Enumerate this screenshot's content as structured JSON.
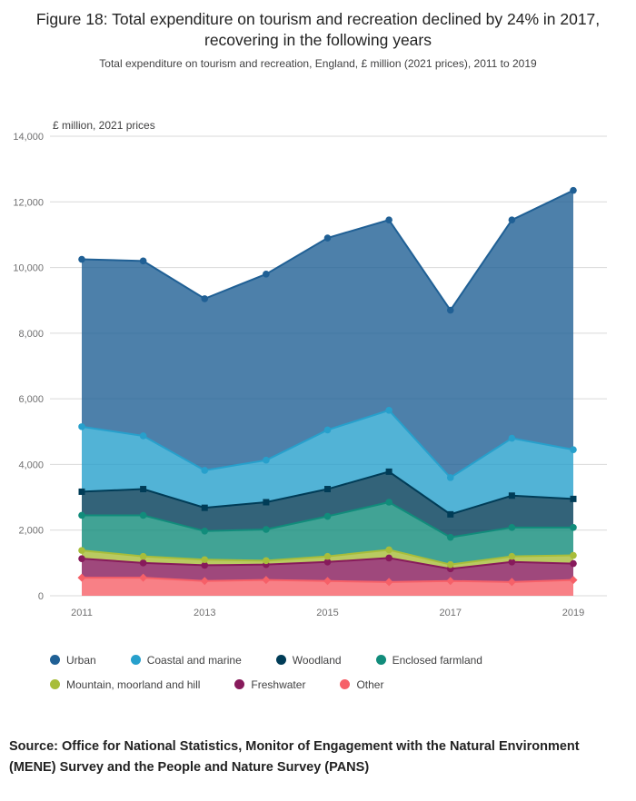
{
  "figure": {
    "title": "Figure 18: Total expenditure on tourism and recreation declined by 24% in 2017, recovering in the following years",
    "subtitle": "Total expenditure on tourism and recreation, England, £ million (2021 prices), 2011 to 2019",
    "source": "Source: Office for National Statistics, Monitor of Engagement with the Natural Environment (MENE) Survey and the People and Nature Survey (PANS)"
  },
  "chart_data": {
    "type": "area",
    "stacked": true,
    "title": "Total expenditure on tourism and recreation, England, £ million (2021 prices), 2011 to 2019",
    "unit_label": "£ million, 2021 prices",
    "x": [
      2011,
      2012,
      2013,
      2014,
      2015,
      2016,
      2017,
      2018,
      2019
    ],
    "x_tick_labels": [
      "2011",
      "2013",
      "2015",
      "2017",
      "2019"
    ],
    "y_ticks": [
      0,
      2000,
      4000,
      6000,
      8000,
      10000,
      12000,
      14000
    ],
    "y_tick_labels": [
      "0",
      "2,000",
      "4,000",
      "6,000",
      "8,000",
      "10,000",
      "12,000",
      "14,000"
    ],
    "ylim": [
      0,
      14000
    ],
    "grid": "horizontal",
    "legend_position": "bottom",
    "stacking_note": "Series are stacked bottom-to-top in reverse legend order (Other at bottom, Urban on top); values are per-series estimates in £ million",
    "series": [
      {
        "name": "Urban",
        "color": "#206095",
        "marker": "circle",
        "values": [
          5100,
          5330,
          5230,
          5670,
          5850,
          5800,
          5100,
          6650,
          7900
        ]
      },
      {
        "name": "Coastal and marine",
        "color": "#27A0CC",
        "marker": "circle",
        "values": [
          1980,
          1620,
          1140,
          1280,
          1800,
          1870,
          1120,
          1750,
          1500
        ]
      },
      {
        "name": "Woodland",
        "color": "#003C57",
        "marker": "square",
        "values": [
          720,
          800,
          710,
          830,
          830,
          930,
          700,
          970,
          870
        ]
      },
      {
        "name": "Enclosed farmland",
        "color": "#118C7B",
        "marker": "circle",
        "values": [
          1070,
          1250,
          870,
          950,
          1220,
          1450,
          830,
          880,
          850
        ]
      },
      {
        "name": "Mountain, moorland and hill",
        "color": "#A8BD3A",
        "marker": "circle",
        "values": [
          250,
          200,
          170,
          120,
          170,
          250,
          130,
          170,
          250
        ]
      },
      {
        "name": "Freshwater",
        "color": "#871A5B",
        "marker": "circle",
        "values": [
          580,
          450,
          480,
          470,
          580,
          730,
          370,
          610,
          500
        ]
      },
      {
        "name": "Other",
        "color": "#F66068",
        "marker": "diamond",
        "values": [
          550,
          550,
          450,
          480,
          450,
          420,
          450,
          420,
          480
        ]
      }
    ],
    "stacked_totals": [
      10250,
      10200,
      9050,
      9800,
      10900,
      11450,
      8700,
      11450,
      12350
    ]
  }
}
